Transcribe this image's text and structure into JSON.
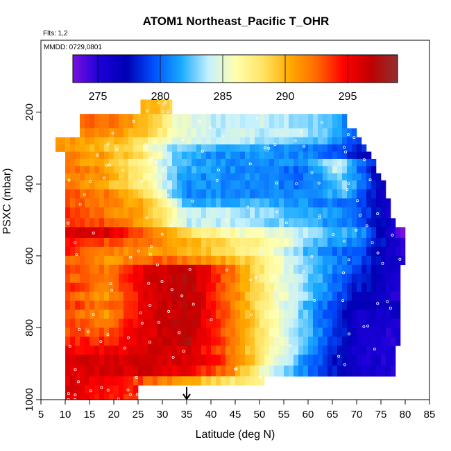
{
  "chart_data": {
    "type": "heatmap",
    "title": "ATOM1 Northeast_Pacific T_OHR",
    "subtitle_flights": "Flts: 1,2",
    "subtitle_dates": "MMDD: 0729,0801",
    "xlabel": "Latitude (deg N)",
    "ylabel": "PSXC (mbar)",
    "xlim": [
      5,
      85
    ],
    "ylim": [
      1000,
      0
    ],
    "x_ticks": [
      5,
      10,
      15,
      20,
      25,
      30,
      35,
      40,
      45,
      50,
      55,
      60,
      65,
      70,
      75,
      80,
      85
    ],
    "y_ticks": [
      200,
      400,
      600,
      800,
      1000
    ],
    "colorbar": {
      "range": [
        273,
        299
      ],
      "ticks": [
        275,
        280,
        285,
        290,
        295
      ],
      "colors": [
        "#7a10e0",
        "#1a00d8",
        "#0000b4",
        "#0050ff",
        "#19aaff",
        "#c4f0ff",
        "#ffffb0",
        "#ffe566",
        "#ffac00",
        "#ff6a00",
        "#ff0000",
        "#c00000",
        "#903030"
      ]
    },
    "arrow_latitude": 35,
    "rows": [
      {
        "p": [
          165,
          205
        ],
        "lat": [
          25.5,
          32
        ],
        "t": [
          290,
          290,
          289,
          289
        ]
      },
      {
        "p": [
          205,
          245
        ],
        "lat": [
          13,
          68
        ],
        "t": [
          293,
          292,
          290,
          285,
          284,
          284,
          284,
          283,
          281
        ]
      },
      {
        "p": [
          245,
          270
        ],
        "lat": [
          13,
          70
        ],
        "t": [
          292,
          291,
          289,
          285,
          284,
          284,
          284,
          283,
          280
        ]
      },
      {
        "p": [
          270,
          290
        ],
        "lat": [
          8,
          71
        ],
        "t": [
          291,
          291,
          289,
          285,
          284,
          284,
          283,
          282,
          279
        ]
      },
      {
        "p": [
          290,
          310
        ],
        "lat": [
          8,
          72
        ],
        "t": [
          291,
          290,
          288,
          283,
          282,
          282,
          281,
          280,
          278
        ]
      },
      {
        "p": [
          310,
          330
        ],
        "lat": [
          10,
          73
        ],
        "t": [
          292,
          291,
          288,
          282,
          281,
          281,
          281,
          280,
          277
        ]
      },
      {
        "p": [
          330,
          350
        ],
        "lat": [
          10,
          74
        ],
        "t": [
          292,
          290,
          287,
          282,
          281,
          281,
          281,
          284,
          278
        ]
      },
      {
        "p": [
          350,
          370
        ],
        "lat": [
          10,
          74
        ],
        "t": [
          293,
          291,
          287,
          282,
          281,
          281,
          280,
          284,
          277
        ]
      },
      {
        "p": [
          370,
          390
        ],
        "lat": [
          10,
          75
        ],
        "t": [
          292,
          291,
          287,
          281,
          281,
          281,
          280,
          283,
          277
        ]
      },
      {
        "p": [
          390,
          415
        ],
        "lat": [
          10,
          76
        ],
        "t": [
          292,
          290,
          287,
          281,
          281,
          281,
          280,
          283,
          276
        ]
      },
      {
        "p": [
          415,
          440
        ],
        "lat": [
          10,
          76
        ],
        "t": [
          293,
          292,
          288,
          281,
          281,
          281,
          281,
          282,
          276
        ]
      },
      {
        "p": [
          440,
          465
        ],
        "lat": [
          10,
          77
        ],
        "t": [
          293,
          292,
          290,
          282,
          282,
          282,
          281,
          280,
          276
        ]
      },
      {
        "p": [
          465,
          495
        ],
        "lat": [
          10,
          77
        ],
        "t": [
          294,
          292,
          290,
          284,
          284,
          283,
          282,
          281,
          276
        ]
      },
      {
        "p": [
          495,
          520
        ],
        "lat": [
          10,
          78
        ],
        "t": [
          294,
          293,
          290,
          284,
          284,
          283,
          282,
          280,
          276
        ]
      },
      {
        "p": [
          520,
          550
        ],
        "lat": [
          10,
          80
        ],
        "t": [
          296,
          296,
          292,
          288,
          286,
          285,
          283,
          281,
          273
        ]
      },
      {
        "p": [
          550,
          575
        ],
        "lat": [
          10,
          80
        ],
        "t": [
          295,
          293,
          292,
          290,
          288,
          286,
          282,
          280,
          275
        ]
      },
      {
        "p": [
          575,
          600
        ],
        "lat": [
          10,
          80
        ],
        "t": [
          294,
          292,
          291,
          290,
          288,
          285,
          281,
          279,
          274
        ]
      },
      {
        "p": [
          600,
          625
        ],
        "lat": [
          10,
          80
        ],
        "t": [
          293,
          291,
          293,
          292,
          290,
          286,
          282,
          279,
          275
        ]
      },
      {
        "p": [
          625,
          650
        ],
        "lat": [
          10,
          79
        ],
        "t": [
          293,
          292,
          296,
          297,
          292,
          286,
          282,
          279,
          275
        ]
      },
      {
        "p": [
          650,
          675
        ],
        "lat": [
          10,
          79
        ],
        "t": [
          293,
          292,
          296,
          297,
          292,
          286,
          282,
          278,
          275
        ]
      },
      {
        "p": [
          675,
          700
        ],
        "lat": [
          10,
          79
        ],
        "t": [
          294,
          292,
          296,
          297,
          292,
          286,
          282,
          278,
          275
        ]
      },
      {
        "p": [
          700,
          725
        ],
        "lat": [
          10,
          79
        ],
        "t": [
          293,
          291,
          296,
          297,
          292,
          286,
          282,
          277,
          275
        ]
      },
      {
        "p": [
          725,
          750
        ],
        "lat": [
          10,
          79
        ],
        "t": [
          294,
          292,
          296,
          297,
          292,
          286,
          281,
          277,
          276
        ]
      },
      {
        "p": [
          750,
          775
        ],
        "lat": [
          10,
          79
        ],
        "t": [
          293,
          291,
          296,
          297,
          292,
          286,
          281,
          276,
          276
        ]
      },
      {
        "p": [
          775,
          800
        ],
        "lat": [
          10,
          79
        ],
        "t": [
          294,
          292,
          296,
          297,
          292,
          286,
          281,
          276,
          275
        ]
      },
      {
        "p": [
          800,
          825
        ],
        "lat": [
          10,
          79
        ],
        "t": [
          293,
          293,
          296,
          297,
          292,
          286,
          281,
          276,
          275
        ]
      },
      {
        "p": [
          825,
          850
        ],
        "lat": [
          10,
          79
        ],
        "t": [
          294,
          294,
          296,
          297,
          292,
          286,
          281,
          276,
          275
        ]
      },
      {
        "p": [
          850,
          875
        ],
        "lat": [
          10,
          78
        ],
        "t": [
          295,
          295,
          296,
          296,
          292,
          286,
          281,
          276,
          275
        ]
      },
      {
        "p": [
          875,
          905
        ],
        "lat": [
          10,
          78
        ],
        "t": [
          296,
          296,
          296,
          296,
          293,
          286,
          280,
          276,
          275
        ]
      },
      {
        "p": [
          905,
          935
        ],
        "lat": [
          10,
          78
        ],
        "t": [
          296,
          296,
          296,
          295,
          292,
          284,
          280,
          276,
          275
        ]
      },
      {
        "p": [
          935,
          960
        ],
        "lat": [
          10,
          51
        ],
        "t": [
          296,
          295,
          293,
          291,
          288,
          287
        ]
      },
      {
        "p": [
          960,
          985
        ],
        "lat": [
          10,
          25
        ],
        "t": [
          296,
          295,
          294,
          294
        ]
      },
      {
        "p": [
          985,
          1000
        ],
        "lat": [
          10,
          25
        ],
        "t": [
          296,
          295,
          294,
          294
        ]
      }
    ]
  }
}
